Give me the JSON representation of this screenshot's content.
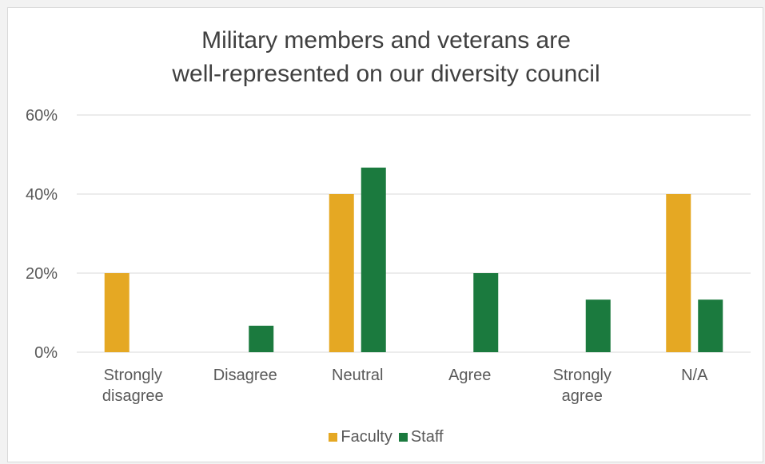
{
  "chart_data": {
    "type": "bar",
    "title": [
      "Military members and veterans are",
      "well-represented on our diversity council"
    ],
    "categories": [
      [
        "Strongly",
        "disagree"
      ],
      [
        "Disagree"
      ],
      [
        "Neutral"
      ],
      [
        "Agree"
      ],
      [
        "Strongly",
        "agree"
      ],
      [
        "N/A"
      ]
    ],
    "series": [
      {
        "name": "Faculty",
        "color": "#e5a823",
        "values": [
          20,
          0,
          40,
          0,
          0,
          40
        ]
      },
      {
        "name": "Staff",
        "color": "#1b7a3e",
        "values": [
          0,
          6.7,
          46.7,
          20,
          13.3,
          13.3
        ]
      }
    ],
    "y_ticks": [
      "0%",
      "20%",
      "40%",
      "60%"
    ],
    "ylim": [
      0,
      60
    ],
    "grid": true,
    "legend_position": "bottom"
  }
}
